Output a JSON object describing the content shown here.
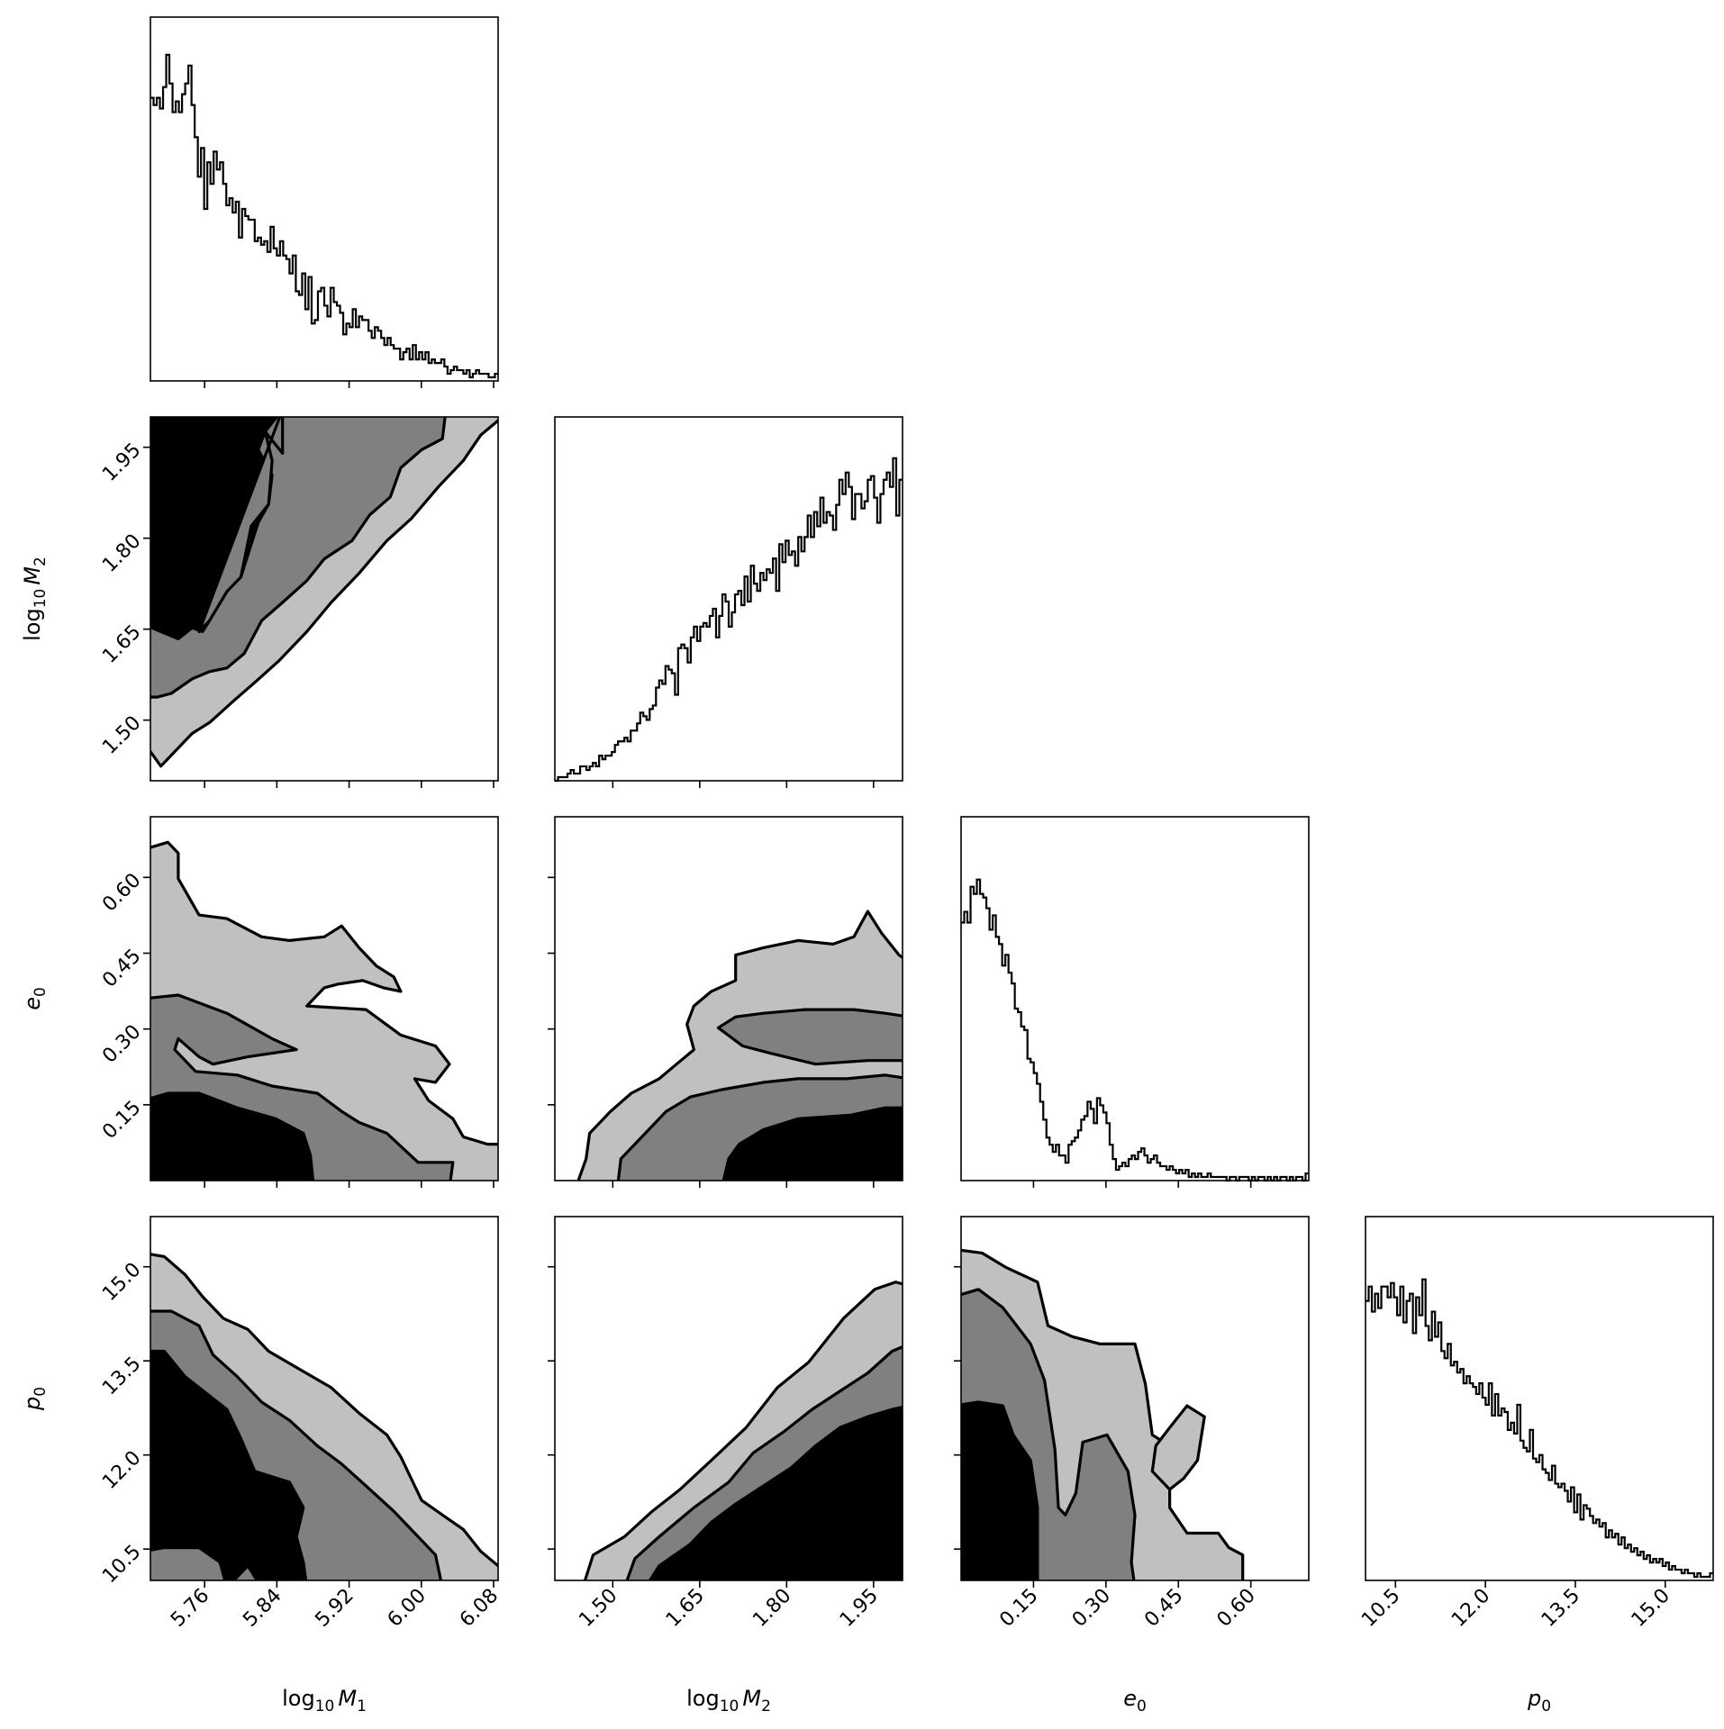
{
  "chart_data": {
    "type": "corner",
    "parameters": [
      {
        "key": "logM1",
        "label_base": "log",
        "label_sub": "10",
        "label_var": "M",
        "label_var_sub": "1",
        "range": [
          5.7,
          6.085
        ],
        "ticks": [
          "5.76",
          "5.84",
          "5.92",
          "6.00",
          "6.08"
        ],
        "tick_values": [
          5.76,
          5.84,
          5.92,
          6.0,
          6.08
        ]
      },
      {
        "key": "logM2",
        "label_base": "log",
        "label_sub": "10",
        "label_var": "M",
        "label_var_sub": "2",
        "range": [
          1.4,
          2.0
        ],
        "ticks": [
          "1.50",
          "1.65",
          "1.80",
          "1.95"
        ],
        "tick_values": [
          1.5,
          1.65,
          1.8,
          1.95
        ]
      },
      {
        "key": "e0",
        "label_base": "",
        "label_sub": "",
        "label_var": "e",
        "label_var_sub": "0",
        "range": [
          0.0,
          0.72
        ],
        "ticks": [
          "0.15",
          "0.30",
          "0.45",
          "0.60"
        ],
        "tick_values": [
          0.15,
          0.3,
          0.45,
          0.6
        ]
      },
      {
        "key": "p0",
        "label_base": "",
        "label_sub": "",
        "label_var": "p",
        "label_var_sub": "0",
        "range": [
          10.0,
          15.8
        ],
        "ticks": [
          "10.5",
          "12.0",
          "13.5",
          "15.0"
        ],
        "tick_values": [
          10.5,
          12.0,
          13.5,
          15.0
        ]
      }
    ],
    "histograms": {
      "logM1": [
        0.79,
        0.77,
        0.79,
        0.76,
        0.82,
        0.91,
        0.83,
        0.75,
        0.78,
        0.75,
        0.8,
        0.83,
        0.88,
        0.77,
        0.68,
        0.57,
        0.65,
        0.48,
        0.61,
        0.55,
        0.64,
        0.59,
        0.61,
        0.55,
        0.49,
        0.51,
        0.47,
        0.5,
        0.4,
        0.48,
        0.46,
        0.45,
        0.45,
        0.39,
        0.4,
        0.38,
        0.39,
        0.36,
        0.43,
        0.37,
        0.35,
        0.39,
        0.35,
        0.34,
        0.3,
        0.35,
        0.25,
        0.24,
        0.3,
        0.2,
        0.29,
        0.16,
        0.17,
        0.25,
        0.26,
        0.21,
        0.18,
        0.26,
        0.22,
        0.21,
        0.19,
        0.13,
        0.16,
        0.15,
        0.2,
        0.15,
        0.18,
        0.17,
        0.17,
        0.14,
        0.12,
        0.15,
        0.14,
        0.12,
        0.1,
        0.12,
        0.1,
        0.09,
        0.09,
        0.06,
        0.08,
        0.09,
        0.06,
        0.1,
        0.06,
        0.08,
        0.06,
        0.08,
        0.05,
        0.06,
        0.05,
        0.05,
        0.06,
        0.04,
        0.02,
        0.03,
        0.04,
        0.03,
        0.03,
        0.02,
        0.03,
        0.01,
        0.02,
        0.03,
        0.02,
        0.02,
        0.02,
        0.01,
        0.01,
        0.02
      ],
      "logM2": [
        0.0,
        0.01,
        0.01,
        0.01,
        0.02,
        0.03,
        0.02,
        0.02,
        0.04,
        0.04,
        0.03,
        0.04,
        0.05,
        0.04,
        0.07,
        0.06,
        0.07,
        0.07,
        0.08,
        0.1,
        0.11,
        0.11,
        0.12,
        0.11,
        0.14,
        0.14,
        0.16,
        0.19,
        0.18,
        0.17,
        0.2,
        0.21,
        0.26,
        0.28,
        0.27,
        0.32,
        0.31,
        0.3,
        0.24,
        0.37,
        0.38,
        0.37,
        0.33,
        0.4,
        0.43,
        0.39,
        0.43,
        0.44,
        0.43,
        0.46,
        0.48,
        0.4,
        0.46,
        0.52,
        0.5,
        0.43,
        0.47,
        0.52,
        0.53,
        0.49,
        0.57,
        0.5,
        0.6,
        0.55,
        0.53,
        0.58,
        0.56,
        0.59,
        0.58,
        0.62,
        0.53,
        0.66,
        0.61,
        0.67,
        0.63,
        0.64,
        0.6,
        0.68,
        0.64,
        0.68,
        0.74,
        0.68,
        0.75,
        0.71,
        0.79,
        0.72,
        0.75,
        0.74,
        0.7,
        0.77,
        0.84,
        0.8,
        0.86,
        0.82,
        0.73,
        0.8,
        0.8,
        0.76,
        0.78,
        0.84,
        0.85,
        0.79,
        0.72,
        0.8,
        0.84,
        0.86,
        0.82,
        0.9,
        0.74,
        0.84
      ],
      "e0": [
        0.72,
        0.75,
        0.72,
        0.82,
        0.8,
        0.84,
        0.8,
        0.79,
        0.76,
        0.7,
        0.74,
        0.68,
        0.66,
        0.6,
        0.63,
        0.58,
        0.55,
        0.48,
        0.47,
        0.43,
        0.42,
        0.34,
        0.33,
        0.3,
        0.27,
        0.22,
        0.17,
        0.12,
        0.1,
        0.08,
        0.1,
        0.07,
        0.07,
        0.05,
        0.1,
        0.11,
        0.12,
        0.14,
        0.17,
        0.18,
        0.22,
        0.2,
        0.16,
        0.23,
        0.21,
        0.19,
        0.16,
        0.1,
        0.06,
        0.03,
        0.04,
        0.05,
        0.04,
        0.06,
        0.07,
        0.06,
        0.08,
        0.09,
        0.07,
        0.05,
        0.06,
        0.07,
        0.05,
        0.04,
        0.04,
        0.03,
        0.04,
        0.03,
        0.02,
        0.03,
        0.02,
        0.03,
        0.01,
        0.02,
        0.01,
        0.02,
        0.01,
        0.01,
        0.02,
        0.01,
        0.01,
        0.01,
        0.01,
        0.01,
        0.0,
        0.01,
        0.01,
        0.0,
        0.01,
        0.01,
        0.01,
        0.0,
        0.01,
        0.0,
        0.01,
        0.01,
        0.0,
        0.01,
        0.0,
        0.01,
        0.0,
        0.01,
        0.01,
        0.0,
        0.01,
        0.0,
        0.01,
        0.01,
        0.0,
        0.02
      ],
      "p0": [
        0.78,
        0.82,
        0.75,
        0.8,
        0.76,
        0.82,
        0.82,
        0.79,
        0.83,
        0.79,
        0.74,
        0.82,
        0.72,
        0.78,
        0.8,
        0.69,
        0.79,
        0.74,
        0.84,
        0.71,
        0.67,
        0.75,
        0.68,
        0.72,
        0.64,
        0.62,
        0.66,
        0.6,
        0.61,
        0.58,
        0.59,
        0.55,
        0.57,
        0.55,
        0.54,
        0.52,
        0.55,
        0.51,
        0.49,
        0.55,
        0.46,
        0.52,
        0.46,
        0.48,
        0.47,
        0.42,
        0.44,
        0.41,
        0.49,
        0.39,
        0.37,
        0.36,
        0.42,
        0.34,
        0.33,
        0.35,
        0.31,
        0.3,
        0.28,
        0.32,
        0.27,
        0.26,
        0.27,
        0.25,
        0.22,
        0.26,
        0.19,
        0.24,
        0.17,
        0.21,
        0.2,
        0.18,
        0.16,
        0.17,
        0.15,
        0.16,
        0.12,
        0.14,
        0.12,
        0.13,
        0.1,
        0.12,
        0.09,
        0.1,
        0.08,
        0.09,
        0.07,
        0.08,
        0.06,
        0.07,
        0.05,
        0.06,
        0.05,
        0.06,
        0.04,
        0.05,
        0.03,
        0.04,
        0.03,
        0.03,
        0.02,
        0.03,
        0.02,
        0.02,
        0.01,
        0.02,
        0.01,
        0.01,
        0.01,
        0.02
      ]
    },
    "contour_levels_fill": [
      "#c0c0c0",
      "#808080",
      "#000000"
    ]
  }
}
